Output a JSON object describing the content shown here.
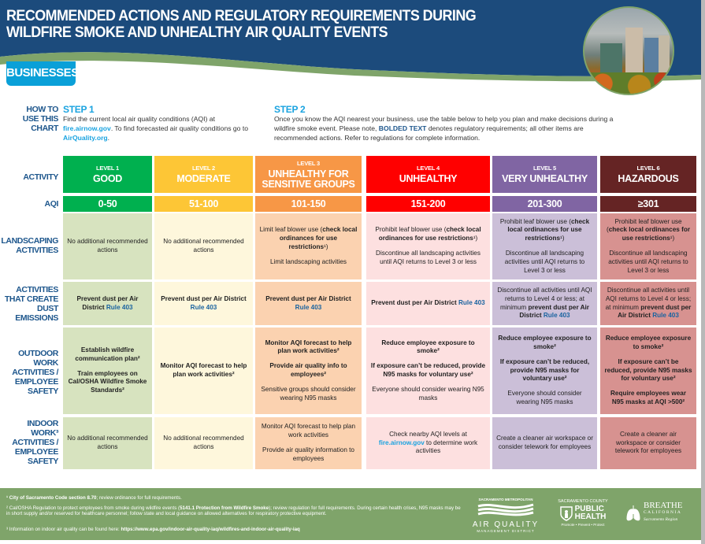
{
  "header": {
    "title_line1": "RECOMMENDED ACTIONS AND REGULATORY REQUIREMENTS DURING",
    "title_line2": "WILDFIRE SMOKE AND UNHEALTHY AIR QUALITY EVENTS",
    "tab": "BUSINESSES"
  },
  "colors": {
    "navy": "#1c4b7c",
    "green_band": "#7fa46a",
    "tab_blue": "#0aa0d8"
  },
  "how_to": {
    "label": [
      "HOW TO",
      "USE THIS",
      "CHART"
    ],
    "step1_title": "STEP 1",
    "step1": {
      "a": "Find the current local air quality conditions (AQI) at ",
      "link1": "fire.airnow.gov",
      "b": ". To find forecasted air quality conditions go to ",
      "link2": "AirQuality.org",
      "c": "."
    },
    "step2_title": "STEP 2",
    "step2": {
      "a": "Once you know the AQI nearest your business, use the table below to help you plan and make decisions during a wildfire smoke event. Please note, ",
      "bold": "BOLDED TEXT",
      "b": " denotes regulatory requirements; all other items are recommended actions. Refer to regulations for complete information."
    }
  },
  "row_labels": {
    "activity": "ACTIVITY",
    "aqi": "AQI",
    "landscaping": [
      "LANDSCAPING",
      "ACTIVITIES"
    ],
    "dust": [
      "ACTIVITIES",
      "THAT CREATE",
      "DUST",
      "EMISSIONS"
    ],
    "outdoor": [
      "OUTDOOR",
      "WORK",
      "ACTIVITIES /",
      "EMPLOYEE",
      "SAFETY"
    ],
    "indoor": [
      "INDOOR",
      "WORK³",
      "ACTIVITIES /",
      "EMPLOYEE",
      "SAFETY"
    ]
  },
  "levels": [
    {
      "level": "LEVEL 1",
      "category": "GOOD",
      "aqi": "0-50",
      "color": "#00b04f",
      "light": "#d7e3bf",
      "landscaping": [
        [
          {
            "t": "No additional recommended actions"
          }
        ]
      ],
      "dust": [
        [
          {
            "t": "Prevent dust per Air District ",
            "b": true
          },
          {
            "t": "Rule 403",
            "l": 1
          }
        ]
      ],
      "outdoor": [
        [
          {
            "t": "Establish wildfire communication plan²",
            "b": true
          }
        ],
        [
          {
            "t": "Train employees on Cal/OSHA Wildfire Smoke Standards²",
            "b": true
          }
        ]
      ],
      "indoor": [
        [
          {
            "t": "No additional recommended actions"
          }
        ]
      ]
    },
    {
      "level": "LEVEL 2",
      "category": "MODERATE",
      "aqi": "51-100",
      "color": "#fdc636",
      "light": "#fef7dc",
      "landscaping": [
        [
          {
            "t": "No additional recommended actions"
          }
        ]
      ],
      "dust": [
        [
          {
            "t": "Prevent dust per Air District ",
            "b": true
          },
          {
            "t": "Rule 403",
            "l": 1
          }
        ]
      ],
      "outdoor": [
        [
          {
            "t": "Monitor AQI forecast to help plan work activities²",
            "b": true
          }
        ]
      ],
      "indoor": [
        [
          {
            "t": "No additional recommended actions"
          }
        ]
      ]
    },
    {
      "level": "LEVEL 3",
      "category": "UNHEALTHY FOR SENSITIVE GROUPS",
      "aqi": "101-150",
      "color": "#f79746",
      "light": "#fbd2b0",
      "landscaping": [
        [
          {
            "t": "Limit leaf blower use ("
          },
          {
            "t": "check local ordinances for use restrictions",
            "b": true
          },
          {
            "t": "¹)"
          }
        ],
        [
          {
            "t": "Limit landscaping activities"
          }
        ]
      ],
      "dust": [
        [
          {
            "t": "Prevent dust per Air District ",
            "b": true
          },
          {
            "t": "Rule 403",
            "l": 1
          }
        ]
      ],
      "outdoor": [
        [
          {
            "t": "Monitor AQI forecast to help plan work activities²",
            "b": true
          }
        ],
        [
          {
            "t": "Provide air quality info to employees²",
            "b": true
          }
        ],
        [
          {
            "t": "Sensitive groups should consider wearing N95 masks"
          }
        ]
      ],
      "indoor": [
        [
          {
            "t": "Monitor AQI forecast to help plan work activities"
          }
        ],
        [
          {
            "t": "Provide air quality information to employees"
          }
        ]
      ]
    },
    {
      "level": "LEVEL 4",
      "category": "UNHEALTHY",
      "aqi": "151-200",
      "color": "#ff0000",
      "light": "#fde0e0",
      "landscaping": [
        [
          {
            "t": "Prohibit leaf blower use ("
          },
          {
            "t": "check local ordinances for use restrictions",
            "b": true
          },
          {
            "t": "¹)"
          }
        ],
        [
          {
            "t": "Discontinue all landscaping activities until AQI returns to Level 3 or less"
          }
        ]
      ],
      "dust": [
        [
          {
            "t": "Prevent dust per Air District ",
            "b": true
          },
          {
            "t": "Rule 403",
            "l": 1
          }
        ]
      ],
      "outdoor": [
        [
          {
            "t": "Reduce employee exposure to smoke²",
            "b": true
          }
        ],
        [
          {
            "t": "If exposure can’t be reduced, provide N95 masks for voluntary use²",
            "b": true
          }
        ],
        [
          {
            "t": "Everyone should consider wearing N95 masks"
          }
        ]
      ],
      "indoor": [
        [
          {
            "t": "Check nearby AQI levels at "
          },
          {
            "t": "fire.airnow.gov",
            "l": 2
          },
          {
            "t": " to determine work activities"
          }
        ]
      ]
    },
    {
      "level": "LEVEL 5",
      "category": "VERY UNHEALTHY",
      "aqi": "201-300",
      "color": "#8065a3",
      "light": "#cbbfd8",
      "landscaping": [
        [
          {
            "t": "Prohibit leaf blower use ("
          },
          {
            "t": "check local ordinances for use restrictions",
            "b": true
          },
          {
            "t": "¹)"
          }
        ],
        [
          {
            "t": "Discontinue all landscaping activities until AQI returns to Level 3 or less"
          }
        ]
      ],
      "dust": [
        [
          {
            "t": "Discontinue all activities until AQI returns to Level 4 or less; at minimum "
          },
          {
            "t": "prevent dust per Air District ",
            "b": true
          },
          {
            "t": "Rule 403",
            "l": 1
          }
        ]
      ],
      "outdoor": [
        [
          {
            "t": "Reduce employee exposure to smoke²",
            "b": true
          }
        ],
        [
          {
            "t": "If exposure can’t be reduced, provide N95 masks for voluntary use²",
            "b": true
          }
        ],
        [
          {
            "t": "Everyone should consider wearing N95 masks"
          }
        ]
      ],
      "indoor": [
        [
          {
            "t": "Create a cleaner air workspace or consider telework for employees"
          }
        ]
      ]
    },
    {
      "level": "LEVEL 6",
      "category": "HAZARDOUS",
      "aqi": "≥301",
      "color": "#652424",
      "light": "#d79290",
      "landscaping": [
        [
          {
            "t": "Prohibit leaf blower use ("
          },
          {
            "t": "check local ordinances for use restrictions",
            "b": true
          },
          {
            "t": "¹)"
          }
        ],
        [
          {
            "t": "Discontinue all landscaping activities until AQI returns to Level 3 or less"
          }
        ]
      ],
      "dust": [
        [
          {
            "t": "Discontinue all activities until AQI returns to Level 4 or less; at minimum "
          },
          {
            "t": "prevent dust per Air District ",
            "b": true
          },
          {
            "t": "Rule 403",
            "l": 1
          }
        ]
      ],
      "outdoor": [
        [
          {
            "t": "Reduce employee exposure to smoke²",
            "b": true
          }
        ],
        [
          {
            "t": "If exposure can’t be reduced, provide N95 masks for voluntary use²",
            "b": true
          }
        ],
        [
          {
            "t": "Require employees wear N95 masks at AQI >500²",
            "b": true
          }
        ]
      ],
      "indoor": [
        [
          {
            "t": "Create a cleaner air workspace or consider telework for employees"
          }
        ]
      ]
    }
  ],
  "footnotes": {
    "f1_bold": "¹ City of Sacramento Code section 8.70",
    "f1": "; review ordinance for full requirements.",
    "f2_a": "² Cal/OSHA Regulation to protect employees from smoke during wildfire events (",
    "f2_bold": "5141.1 Protection from Wildfire Smoke",
    "f2_b": "); review regulation for full requirements. During certain health crises, N95 masks may be in short supply and/or reserved for healthcare personnel; follow state and local guidance on allowed alternatives for respiratory protective equipment.",
    "f3_a": "³ Information on indoor air quality can be found here: ",
    "f3_bold": "https://www.epa.gov/indoor-air-quality-iaq/wildfires-and-indoor-air-quality-iaq"
  },
  "logos": {
    "aqmd": {
      "top": "SACRAMENTO METROPOLITAN",
      "main": "AIR QUALITY",
      "sub": "MANAGEMENT DISTRICT"
    },
    "health": {
      "top": "SACRAMENTO COUNTY",
      "main1": "PUBLIC",
      "main2": "HEALTH",
      "sub": "Promote • Prevent • Protect"
    },
    "breathe": {
      "main": "BREATHE",
      "sub": "CALIFORNIA",
      "region": "Sacramento Region"
    }
  }
}
